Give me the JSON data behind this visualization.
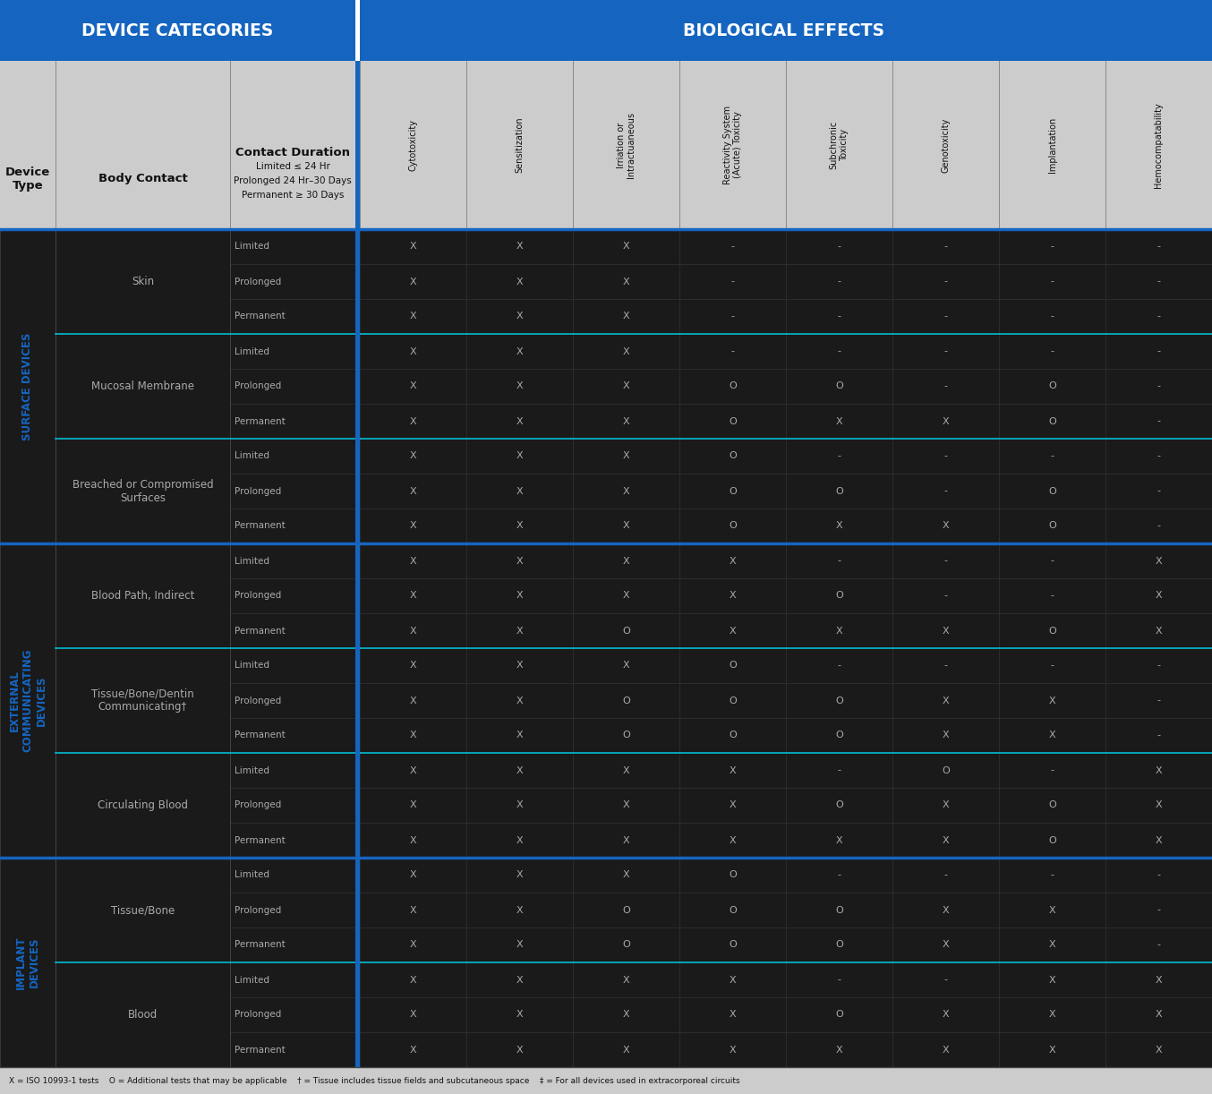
{
  "header_bg": "#1565C0",
  "header_text": "#FFFFFF",
  "subheader_bg": "#CCCCCC",
  "body_bg": "#1a1a1a",
  "cell_border_color": "#3a3a3a",
  "contact_divider_color": "#00bcd4",
  "section_divider_color": "#1565C0",
  "blue_divider_color": "#1565C0",
  "text_body": "#aaaaaa",
  "text_header": "#111111",
  "section_label_color": "#1565C0",
  "col_headers": [
    "Cytotoxicity",
    "Sensitization",
    "Irriation or\nIntractuaneous",
    "Reactivity System\n(Acute) Toxicity",
    "Subchronic\nToxicity",
    "Genotoxicity",
    "Implantation",
    "Hemocompatability"
  ],
  "device_categories": [
    {
      "section": "SURFACE DEVICES",
      "contacts": [
        {
          "name": "Skin",
          "durations": [
            "Limited",
            "Prolonged",
            "Permanent"
          ],
          "data": [
            [
              "X",
              "X",
              "X",
              "-",
              "-",
              "-",
              "-",
              "-"
            ],
            [
              "X",
              "X",
              "X",
              "-",
              "-",
              "-",
              "-",
              "-"
            ],
            [
              "X",
              "X",
              "X",
              "-",
              "-",
              "-",
              "-",
              "-"
            ]
          ]
        },
        {
          "name": "Mucosal Membrane",
          "durations": [
            "Limited",
            "Prolonged",
            "Permanent"
          ],
          "data": [
            [
              "X",
              "X",
              "X",
              "-",
              "-",
              "-",
              "-",
              "-"
            ],
            [
              "X",
              "X",
              "X",
              "O",
              "O",
              "-",
              "O",
              "-"
            ],
            [
              "X",
              "X",
              "X",
              "O",
              "X",
              "X",
              "O",
              "-"
            ]
          ]
        },
        {
          "name": "Breached or Compromised\nSurfaces",
          "durations": [
            "Limited",
            "Prolonged",
            "Permanent"
          ],
          "data": [
            [
              "X",
              "X",
              "X",
              "O",
              "-",
              "-",
              "-",
              "-"
            ],
            [
              "X",
              "X",
              "X",
              "O",
              "O",
              "-",
              "O",
              "-"
            ],
            [
              "X",
              "X",
              "X",
              "O",
              "X",
              "X",
              "O",
              "-"
            ]
          ]
        }
      ]
    },
    {
      "section": "EXTERNAL\nCOMMUNICATING\nDEVICES",
      "contacts": [
        {
          "name": "Blood Path, Indirect",
          "durations": [
            "Limited",
            "Prolonged",
            "Permanent"
          ],
          "data": [
            [
              "X",
              "X",
              "X",
              "X",
              "-",
              "-",
              "-",
              "X"
            ],
            [
              "X",
              "X",
              "X",
              "X",
              "O",
              "-",
              "-",
              "X"
            ],
            [
              "X",
              "X",
              "O",
              "X",
              "X",
              "X",
              "O",
              "X"
            ]
          ]
        },
        {
          "name": "Tissue/Bone/Dentin\nCommunicating†",
          "durations": [
            "Limited",
            "Prolonged",
            "Permanent"
          ],
          "data": [
            [
              "X",
              "X",
              "X",
              "O",
              "-",
              "-",
              "-",
              "-"
            ],
            [
              "X",
              "X",
              "O",
              "O",
              "O",
              "X",
              "X",
              "-"
            ],
            [
              "X",
              "X",
              "O",
              "O",
              "O",
              "X",
              "X",
              "-"
            ]
          ]
        },
        {
          "name": "Circulating Blood",
          "durations": [
            "Limited",
            "Prolonged",
            "Permanent"
          ],
          "data": [
            [
              "X",
              "X",
              "X",
              "X",
              "-",
              "O",
              "-",
              "X"
            ],
            [
              "X",
              "X",
              "X",
              "X",
              "O",
              "X",
              "O",
              "X"
            ],
            [
              "X",
              "X",
              "X",
              "X",
              "X",
              "X",
              "O",
              "X"
            ]
          ]
        }
      ]
    },
    {
      "section": "IMPLANT\nDEVICES",
      "contacts": [
        {
          "name": "Tissue/Bone",
          "durations": [
            "Limited",
            "Prolonged",
            "Permanent"
          ],
          "data": [
            [
              "X",
              "X",
              "X",
              "O",
              "-",
              "-",
              "-",
              "-"
            ],
            [
              "X",
              "X",
              "O",
              "O",
              "O",
              "X",
              "X",
              "-"
            ],
            [
              "X",
              "X",
              "O",
              "O",
              "O",
              "X",
              "X",
              "-"
            ]
          ]
        },
        {
          "name": "Blood",
          "durations": [
            "Limited",
            "Prolonged",
            "Permanent"
          ],
          "data": [
            [
              "X",
              "X",
              "X",
              "X",
              "-",
              "-",
              "X",
              "X"
            ],
            [
              "X",
              "X",
              "X",
              "X",
              "O",
              "X",
              "X",
              "X"
            ],
            [
              "X",
              "X",
              "X",
              "X",
              "X",
              "X",
              "X",
              "X"
            ]
          ]
        }
      ]
    }
  ],
  "footnote": "X = ISO 10993-1 tests    O = Additional tests that may be applicable    † = Tissue includes tissue fields and subcutaneous space    ‡ = For all devices used in extracorporeal circuits"
}
